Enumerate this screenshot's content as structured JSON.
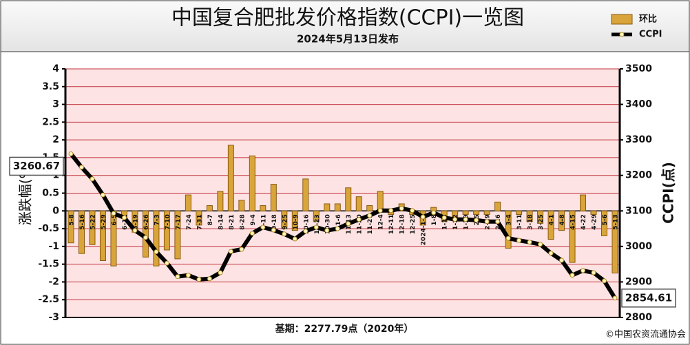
{
  "chart_data": {
    "type": "bar-line",
    "title": "中国复合肥批发价格指数(CCPI)一览图",
    "subtitle": "2024年5月13日发布",
    "y_label": "涨跌幅(%)",
    "y2_label": "CCPI(点)",
    "footnote": "基期：2277.79点（2020年）",
    "credit": "©中国农资流通协会",
    "legend": "top-right",
    "grid": true,
    "categories": [
      "5-8",
      "5-16",
      "5-22",
      "5-29",
      "6-5",
      "6-12",
      "6-19",
      "6-26",
      "7-3",
      "7-10",
      "7-17",
      "7-24",
      "7-31",
      "8-7",
      "8-14",
      "8-21",
      "8-28",
      "9-4",
      "9-11",
      "9-18",
      "9-25",
      "10-9",
      "10-16",
      "10-23",
      "10-30",
      "11-6",
      "11-13",
      "11-20",
      "11-27",
      "12-4",
      "12-11",
      "12-18",
      "12-25",
      "2024-1-1",
      "1-8",
      "1-15",
      "1-22",
      "1-29",
      "2-5",
      "2-19",
      "2-26",
      "3-4",
      "3-11",
      "3-18",
      "3-25",
      "4-1",
      "4-8",
      "4-15",
      "4-22",
      "4-29",
      "5-6",
      "5-13"
    ],
    "ylim": [
      -3,
      4
    ],
    "yticks": [
      4,
      3.5,
      3,
      2.5,
      2,
      1.5,
      1,
      0.5,
      0,
      -0.5,
      -1,
      -1.5,
      -2,
      -2.5,
      -3
    ],
    "y2lim": [
      2800,
      3500
    ],
    "y2ticks": [
      3500,
      3400,
      3300,
      3200,
      3100,
      3000,
      2900,
      2800
    ],
    "series": [
      {
        "name": "环比",
        "color": "#d9a53a",
        "axis": "y",
        "values": [
          -0.9,
          -1.2,
          -0.95,
          -1.4,
          -1.55,
          -0.2,
          -0.6,
          -1.3,
          -1.55,
          -1.1,
          -1.35,
          0.45,
          -0.4,
          0.15,
          0.55,
          1.85,
          0.3,
          1.55,
          0.15,
          0.75,
          -0.5,
          -0.55,
          0.9,
          -0.3,
          0.2,
          0.2,
          0.65,
          0.4,
          0.15,
          0.55,
          -0.1,
          0.2,
          -0.1,
          -0.4,
          0.1,
          -0.3,
          -0.2,
          -0.1,
          -0.1,
          -0.1,
          0.25,
          -1.05,
          -0.1,
          -0.3,
          -0.35,
          -0.8,
          -0.55,
          -1.45,
          0.45,
          -0.1,
          -0.7,
          -1.75
        ]
      },
      {
        "name": "CCPI",
        "color": "#000000",
        "axis": "y2",
        "values": [
          3260.67,
          3223,
          3190,
          3145,
          3093,
          3081,
          3045,
          3025,
          2985,
          2953,
          2915,
          2919,
          2907,
          2909,
          2926,
          2986,
          2992,
          3037,
          3054,
          3046,
          3035,
          3021,
          3043,
          3054,
          3045,
          3050,
          3064,
          3076,
          3087,
          3101,
          3101,
          3107,
          3101,
          3083,
          3095,
          3081,
          3076,
          3076,
          3074,
          3070,
          3070,
          3023,
          3017,
          3012,
          3006,
          2981,
          2961,
          2919,
          2932,
          2926,
          2903,
          2854.61
        ]
      }
    ]
  }
}
